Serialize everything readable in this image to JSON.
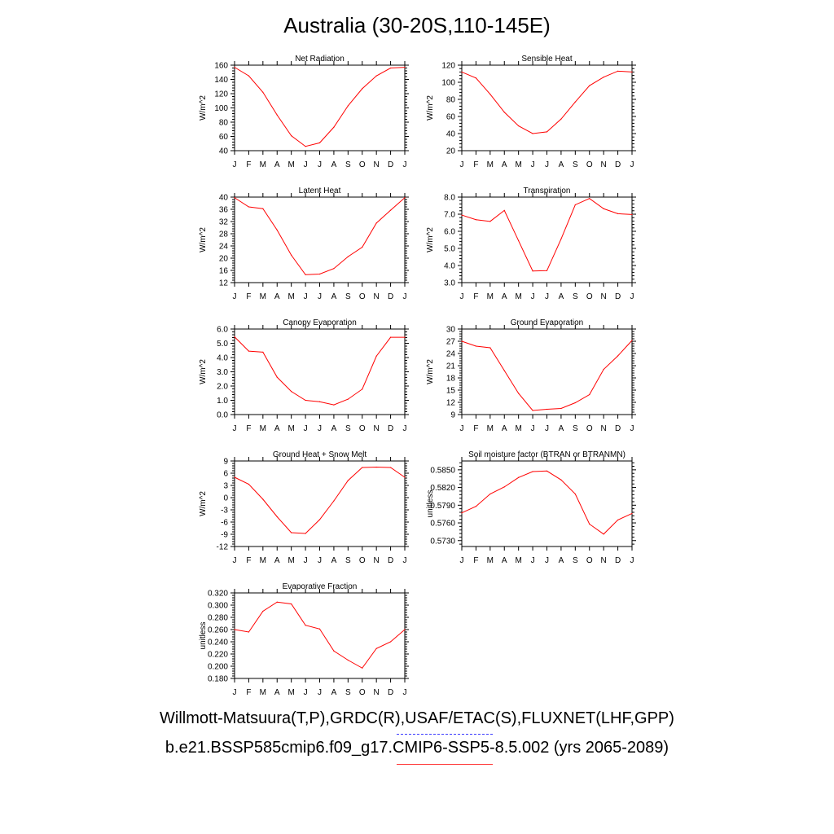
{
  "title": "Australia (30-20S,110-145E)",
  "months": [
    "J",
    "F",
    "M",
    "A",
    "M",
    "J",
    "J",
    "A",
    "S",
    "O",
    "N",
    "D",
    "J"
  ],
  "legend": {
    "observations": "Willmott-Matsuura(T,P),GRDC(R),USAF/ETAC(S),FLUXNET(LHF,GPP)",
    "model": "b.e21.BSSP585cmip6.f09_g17.CMIP6-SSP5-8.5.002 (yrs 2065-2089)",
    "obs_color": "#3b3bff",
    "model_color": "#ff0000"
  },
  "chart_data": [
    {
      "type": "line",
      "title": "Net Radiation",
      "ylabel": "W/m^2",
      "ylim": [
        40,
        160
      ],
      "yticks": [
        "40",
        "60",
        "80",
        "100",
        "120",
        "140",
        "160"
      ],
      "values": [
        157,
        145,
        122,
        90,
        61,
        46,
        51,
        73,
        103,
        127,
        145,
        156,
        157
      ]
    },
    {
      "type": "line",
      "title": "Sensible Heat",
      "ylabel": "W/m^2",
      "ylim": [
        20,
        120
      ],
      "yticks": [
        "20",
        "40",
        "60",
        "80",
        "100",
        "120"
      ],
      "values": [
        112,
        105,
        86,
        65,
        49,
        40,
        42,
        57,
        77,
        96,
        106,
        113,
        112
      ]
    },
    {
      "type": "line",
      "title": "Latent Heat",
      "ylabel": "W/m^2",
      "ylim": [
        12,
        40
      ],
      "yticks": [
        "12",
        "16",
        "20",
        "24",
        "28",
        "32",
        "36",
        "40"
      ],
      "values": [
        39.8,
        36.8,
        36.2,
        29.2,
        21.0,
        14.6,
        14.8,
        16.6,
        20.5,
        23.6,
        31.5,
        35.7,
        39.8
      ]
    },
    {
      "type": "line",
      "title": "Transpiration",
      "ylabel": "W/m^2",
      "ylim": [
        3.0,
        8.0
      ],
      "yticks": [
        "3.0",
        "4.0",
        "5.0",
        "6.0",
        "7.0",
        "8.0"
      ],
      "values": [
        6.95,
        6.68,
        6.58,
        7.22,
        5.45,
        3.68,
        3.7,
        5.55,
        7.55,
        7.92,
        7.32,
        7.03,
        6.98
      ]
    },
    {
      "type": "line",
      "title": "Canopy Evaporation",
      "ylabel": "W/m^2",
      "ylim": [
        0.0,
        6.0
      ],
      "yticks": [
        "0.0",
        "1.0",
        "2.0",
        "3.0",
        "4.0",
        "5.0",
        "6.0"
      ],
      "values": [
        5.45,
        4.45,
        4.38,
        2.62,
        1.62,
        1.0,
        0.9,
        0.68,
        1.08,
        1.78,
        4.1,
        5.42,
        5.42
      ]
    },
    {
      "type": "line",
      "title": "Ground Evaporation",
      "ylabel": "W/m^2",
      "ylim": [
        9,
        30
      ],
      "yticks": [
        "9",
        "12",
        "15",
        "18",
        "21",
        "24",
        "27",
        "30"
      ],
      "values": [
        27.0,
        25.8,
        25.4,
        19.8,
        14.2,
        10.0,
        10.3,
        10.5,
        11.9,
        13.9,
        20.1,
        23.4,
        27.2
      ]
    },
    {
      "type": "line",
      "title": "Ground Heat + Snow Melt",
      "ylabel": "W/m^2",
      "ylim": [
        -12,
        9
      ],
      "yticks": [
        "-12",
        "-9",
        "-6",
        "-3",
        "0",
        "3",
        "6",
        "9"
      ],
      "values": [
        5.0,
        3.3,
        -0.4,
        -4.7,
        -8.6,
        -8.8,
        -5.4,
        -0.8,
        4.2,
        7.4,
        7.5,
        7.4,
        5.0
      ]
    },
    {
      "type": "line",
      "title": "Soil moisture factor (BTRAN or BTRANMN)",
      "ylabel": "unitless",
      "ylim": [
        0.572,
        0.5865
      ],
      "yticks": [
        "0.5730",
        "0.5760",
        "0.5790",
        "0.5820",
        "0.5850"
      ],
      "values": [
        0.5777,
        0.5788,
        0.5809,
        0.5821,
        0.5837,
        0.5847,
        0.5848,
        0.5833,
        0.5809,
        0.5758,
        0.5741,
        0.5765,
        0.5776
      ]
    },
    {
      "type": "line",
      "title": "Evaporative Fraction",
      "ylabel": "unitless",
      "ylim": [
        0.18,
        0.32
      ],
      "yticks": [
        "0.180",
        "0.200",
        "0.220",
        "0.240",
        "0.260",
        "0.280",
        "0.300",
        "0.320"
      ],
      "values": [
        0.26,
        0.256,
        0.29,
        0.305,
        0.302,
        0.267,
        0.261,
        0.225,
        0.21,
        0.197,
        0.229,
        0.24,
        0.26
      ]
    }
  ]
}
